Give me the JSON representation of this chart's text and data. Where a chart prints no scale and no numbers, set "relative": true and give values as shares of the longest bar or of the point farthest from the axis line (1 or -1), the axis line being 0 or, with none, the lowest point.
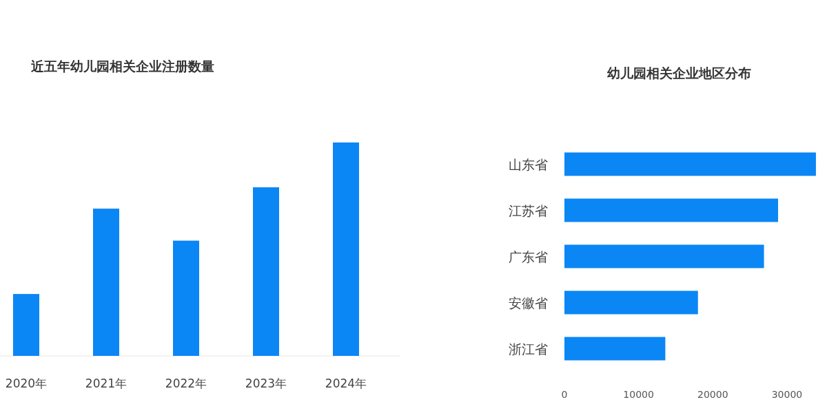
{
  "chart_data": [
    {
      "type": "bar",
      "title": "近五年幼儿园相关企业注册数量",
      "categories": [
        "2020年",
        "2021年",
        "2022年",
        "2023年",
        "2024年"
      ],
      "values": [
        0.29,
        0.69,
        0.54,
        0.79,
        1
      ],
      "relative": true,
      "color": "#0b86f5"
    },
    {
      "type": "bar",
      "title": "幼儿园相关企业地区分布",
      "orientation": "horizontal",
      "categories": [
        "山东省",
        "江苏省",
        "广东省",
        "安徽省",
        "浙江省"
      ],
      "values": [
        33900,
        28800,
        26900,
        18000,
        13600
      ],
      "color": "#0b86f5",
      "xlim": [
        0,
        34000
      ],
      "xticks": [
        0,
        10000,
        20000,
        30000
      ]
    }
  ]
}
